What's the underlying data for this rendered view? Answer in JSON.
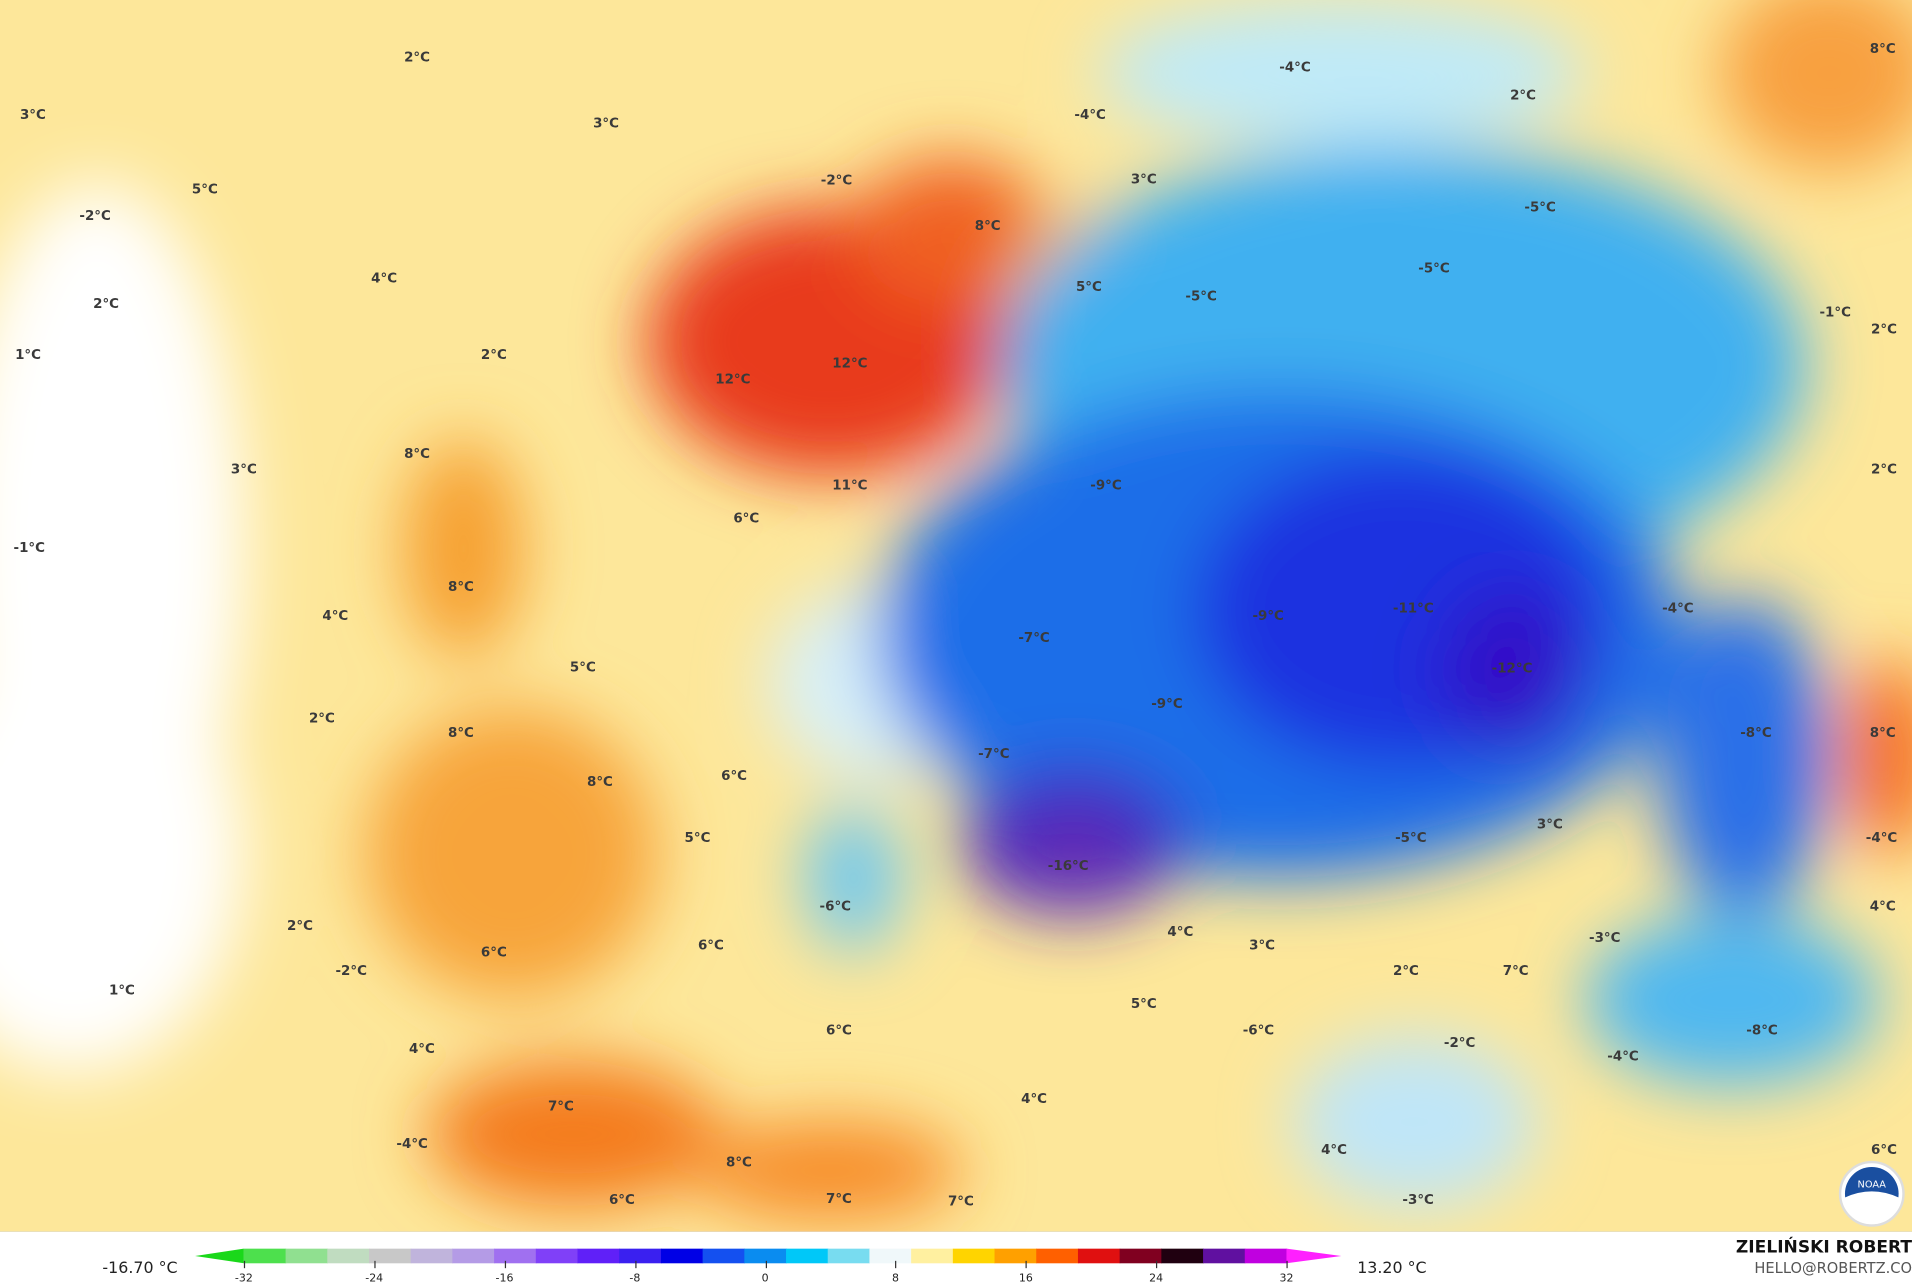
{
  "map": {
    "labels": [
      "2°C",
      "3°C",
      "3°C",
      "5°C",
      "-2°C",
      "2°C",
      "4°C",
      "1°C",
      "2°C",
      "3°C",
      "-1°C",
      "8°C",
      "8°C",
      "4°C",
      "5°C",
      "2°C",
      "8°C",
      "8°C",
      "6°C",
      "5°C",
      "2°C",
      "6°C",
      "-2°C",
      "1°C",
      "6°C",
      "-6°C",
      "6°C",
      "4°C",
      "7°C",
      "-4°C",
      "8°C",
      "6°C",
      "7°C",
      "7°C",
      "4°C",
      "-2°C",
      "8°C",
      "12°C",
      "12°C",
      "11°C",
      "6°C",
      "-4°C",
      "-4°C",
      "3°C",
      "5°C",
      "-5°C",
      "2°C",
      "-5°C",
      "-5°C",
      "-1°C",
      "2°C",
      "8°C",
      "2°C",
      "-9°C",
      "-11°C",
      "-9°C",
      "-7°C",
      "-12°C",
      "-4°C",
      "-9°C",
      "-7°C",
      "-8°C",
      "8°C",
      "-16°C",
      "-5°C",
      "3°C",
      "-4°C",
      "4°C",
      "4°C",
      "3°C",
      "2°C",
      "-3°C",
      "7°C",
      "5°C",
      "-6°C",
      "-2°C",
      "-4°C",
      "-8°C",
      "6°C",
      "4°C",
      "-3°C"
    ],
    "logo": "NOAA"
  },
  "colorbar": {
    "min_value": "-16.70 °C",
    "max_value": "13.20 °C",
    "ticks": [
      "-32",
      "-24",
      "-16",
      "-8",
      "0",
      "8",
      "16",
      "24",
      "32"
    ],
    "colors": [
      "#1ad81a",
      "#4de04d",
      "#90e090",
      "#c0dcc0",
      "#c8c8c8",
      "#c0b4dc",
      "#b49be6",
      "#a070f0",
      "#8040f8",
      "#6020f8",
      "#3a20f0",
      "#0000e6",
      "#1450f0",
      "#0a8cf0",
      "#00c8f8",
      "#78dcf0",
      "#f0f8fa",
      "#fff0a0",
      "#ffd400",
      "#ffa000",
      "#ff6000",
      "#e01010",
      "#800020",
      "#200010",
      "#6010a0",
      "#c000e0",
      "#ff20ff"
    ]
  },
  "credit": {
    "name": "ZIELIŃSKI ROBERT",
    "email": "HELLO@ROBERTZ.CO"
  }
}
